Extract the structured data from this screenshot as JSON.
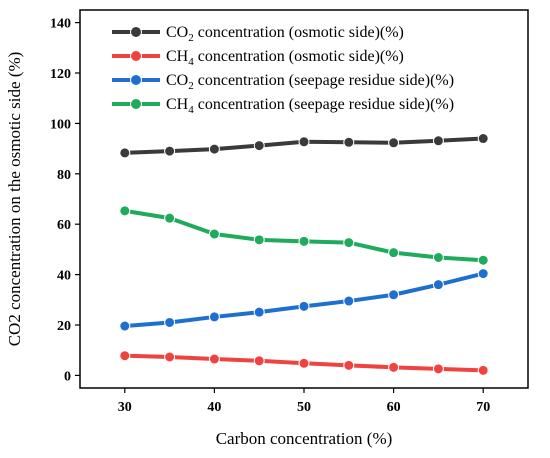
{
  "chart_data": {
    "type": "line",
    "title": "",
    "xlabel": "Carbon concentration (%)",
    "ylabel": "CO2 concentration on the osmotic side (%)",
    "x": [
      30,
      35,
      40,
      45,
      50,
      55,
      60,
      65,
      70
    ],
    "xlim": [
      25,
      75
    ],
    "ylim": [
      -5,
      145
    ],
    "xticks": [
      30,
      40,
      50,
      60,
      70
    ],
    "yticks": [
      0,
      20,
      40,
      60,
      80,
      100,
      120,
      140
    ],
    "grid": false,
    "legend_position": "top-right",
    "series": [
      {
        "name": "CO",
        "sub": "2",
        "suffix": " concentration (osmotic side)(%)",
        "color": "#3a3a3a",
        "values": [
          88.3,
          89.0,
          89.8,
          91.2,
          92.7,
          92.5,
          92.3,
          93.1,
          94.0
        ]
      },
      {
        "name": "CH",
        "sub": "4",
        "suffix": " concentration (osmotic side)(%)",
        "color": "#f0433f",
        "values": [
          7.8,
          7.3,
          6.5,
          5.8,
          4.8,
          4.0,
          3.2,
          2.6,
          2.0
        ]
      },
      {
        "name": "CO",
        "sub": "2",
        "suffix": " concentration (seepage residue side)(%)",
        "color": "#1f6fd1",
        "values": [
          19.6,
          21.0,
          23.2,
          25.1,
          27.4,
          29.5,
          32.0,
          36.0,
          40.4
        ]
      },
      {
        "name": "CH",
        "sub": "4",
        "suffix": " concentration (seepage residue side)(%)",
        "color": "#1faa5c",
        "values": [
          65.3,
          62.4,
          56.1,
          53.8,
          53.2,
          52.7,
          48.7,
          46.8,
          45.7
        ]
      }
    ]
  }
}
